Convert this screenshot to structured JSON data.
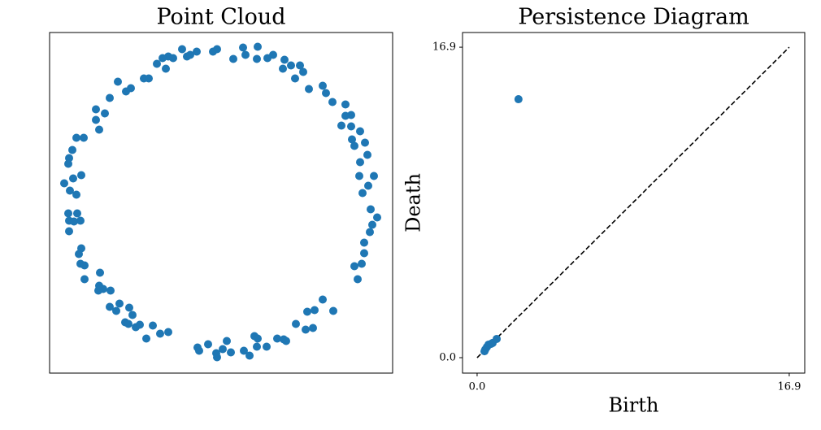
{
  "chart_data": [
    {
      "type": "scatter",
      "title": "Point Cloud",
      "color": "#1f77b4",
      "xlim": [
        -2.11,
        2.11
      ],
      "ylim": [
        -2.095,
        2.095
      ],
      "x": [
        -0.48,
        -0.3,
        -0.1,
        -0.05,
        0.27,
        0.45,
        0.3,
        0.15,
        0.44,
        0.57,
        0.64,
        0.78,
        0.76,
        0.86,
        0.97,
        1.01,
        0.91,
        1.08,
        1.25,
        1.29,
        1.37,
        -0.65,
        -0.72,
        -0.79,
        -0.59,
        -0.68,
        -0.42,
        -0.38,
        -0.95,
        -0.89,
        -1.11,
        -1.17,
        -1.27,
        -1.37,
        -1.43,
        -1.54,
        -1.54,
        -1.5,
        -1.69,
        -1.78,
        -1.83,
        -1.87,
        -1.88,
        -1.72,
        -1.82,
        -1.93,
        -1.86,
        -1.78,
        -1.88,
        -1.77,
        -1.87,
        -1.73,
        -1.81,
        -1.87,
        -1.72,
        -1.75,
        -1.73,
        -1.68,
        -1.68,
        -1.49,
        -1.5,
        -1.45,
        -1.36,
        -1.51,
        -1.37,
        -1.25,
        -1.29,
        -1.13,
        -1.09,
        -1.18,
        -1.14,
        -1.05,
        -1.0,
        -0.92,
        -0.84,
        -0.75,
        -0.65,
        -0.29,
        -0.27,
        -0.16,
        -0.05,
        -0.06,
        0.02,
        0.07,
        0.12,
        0.28,
        0.35,
        0.41,
        0.45,
        0.44,
        0.56,
        0.69,
        0.77,
        0.8,
        0.92,
        1.04,
        1.13,
        1.06,
        1.15,
        1.25,
        1.38,
        1.68,
        1.64,
        1.73,
        1.76,
        1.76,
        1.83,
        1.86,
        1.92,
        1.84,
        1.74,
        1.81,
        1.88,
        1.7,
        1.71,
        1.8,
        1.77,
        1.64,
        1.61,
        1.71,
        1.6,
        1.53,
        1.6,
        1.53,
        1.48
      ],
      "values": [
        1.89,
        1.86,
        1.86,
        1.89,
        1.91,
        1.92,
        1.82,
        1.77,
        1.77,
        1.78,
        1.82,
        1.76,
        1.65,
        1.69,
        1.69,
        1.61,
        1.53,
        1.4,
        1.44,
        1.35,
        1.24,
        1.8,
        1.78,
        1.71,
        1.78,
        1.65,
        1.8,
        1.82,
        1.53,
        1.53,
        1.41,
        1.37,
        1.49,
        1.29,
        1.1,
        1.15,
        1.02,
        0.9,
        0.8,
        0.8,
        0.65,
        0.55,
        0.48,
        0.34,
        0.3,
        0.24,
        0.15,
        0.1,
        -0.13,
        -0.13,
        -0.22,
        -0.22,
        -0.23,
        -0.35,
        -0.56,
        -0.63,
        -0.75,
        -0.77,
        -0.94,
        -0.86,
        -1.02,
        -1.06,
        -1.08,
        -1.08,
        -1.28,
        -1.24,
        -1.33,
        -1.29,
        -1.38,
        -1.47,
        -1.49,
        -1.53,
        -1.5,
        -1.67,
        -1.51,
        -1.61,
        -1.59,
        -1.78,
        -1.82,
        -1.74,
        -1.9,
        -1.85,
        -1.8,
        -1.7,
        -1.84,
        -1.82,
        -1.88,
        -1.64,
        -1.67,
        -1.77,
        -1.77,
        -1.67,
        -1.68,
        -1.7,
        -1.49,
        -1.56,
        -1.54,
        -1.34,
        -1.32,
        -1.19,
        -1.33,
        -0.94,
        -0.78,
        -0.75,
        -0.62,
        -0.49,
        -0.36,
        -0.27,
        -0.18,
        -0.08,
        0.12,
        0.21,
        0.33,
        0.33,
        0.5,
        0.59,
        0.74,
        0.7,
        0.78,
        0.88,
        0.94,
        1.21,
        1.08,
        1.07,
        0.95
      ]
    },
    {
      "type": "persistence",
      "title": "Persistence Diagram",
      "xlabel": "Birth",
      "ylabel": "Death",
      "color": "#1f77b4",
      "xlim": [
        -0.79,
        17.74
      ],
      "ylim": [
        -0.84,
        17.7
      ],
      "xticks": [
        {
          "value": 0,
          "label": "0.0"
        },
        16.9
      ],
      "yticks": [
        {
          "value": 0,
          "label": "0.0"
        },
        16.9
      ],
      "diagonal": true,
      "x": [
        2.24,
        0.4,
        0.44,
        0.53,
        0.62,
        0.75,
        0.84,
        1.06
      ],
      "values": [
        14.07,
        0.35,
        0.44,
        0.58,
        0.71,
        0.75,
        0.8,
        1.02
      ]
    }
  ]
}
